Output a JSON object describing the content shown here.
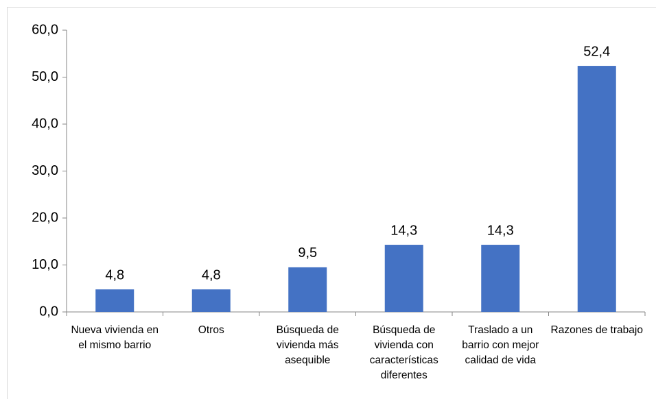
{
  "chart_data": {
    "type": "bar",
    "categories": [
      "Nueva vivienda en el mismo barrio",
      "Otros",
      "Búsqueda de vivienda más asequible",
      "Búsqueda de vivienda con características diferentes",
      "Traslado a un barrio con mejor calidad de vida",
      "Razones de trabajo"
    ],
    "values": [
      4.8,
      4.8,
      9.5,
      14.3,
      14.3,
      52.4
    ],
    "value_labels": [
      "4,8",
      "4,8",
      "9,5",
      "14,3",
      "14,3",
      "52,4"
    ],
    "color": "#4472c4",
    "ylim": [
      0,
      60
    ],
    "yticks": [
      {
        "value": 0,
        "label": "0,0"
      },
      {
        "value": 10,
        "label": "10,0"
      },
      {
        "value": 20,
        "label": "20,0"
      },
      {
        "value": 30,
        "label": "30,0"
      },
      {
        "value": 40,
        "label": "40,0"
      },
      {
        "value": 50,
        "label": "50,0"
      },
      {
        "value": 60,
        "label": "60,0"
      }
    ],
    "grid": false
  }
}
